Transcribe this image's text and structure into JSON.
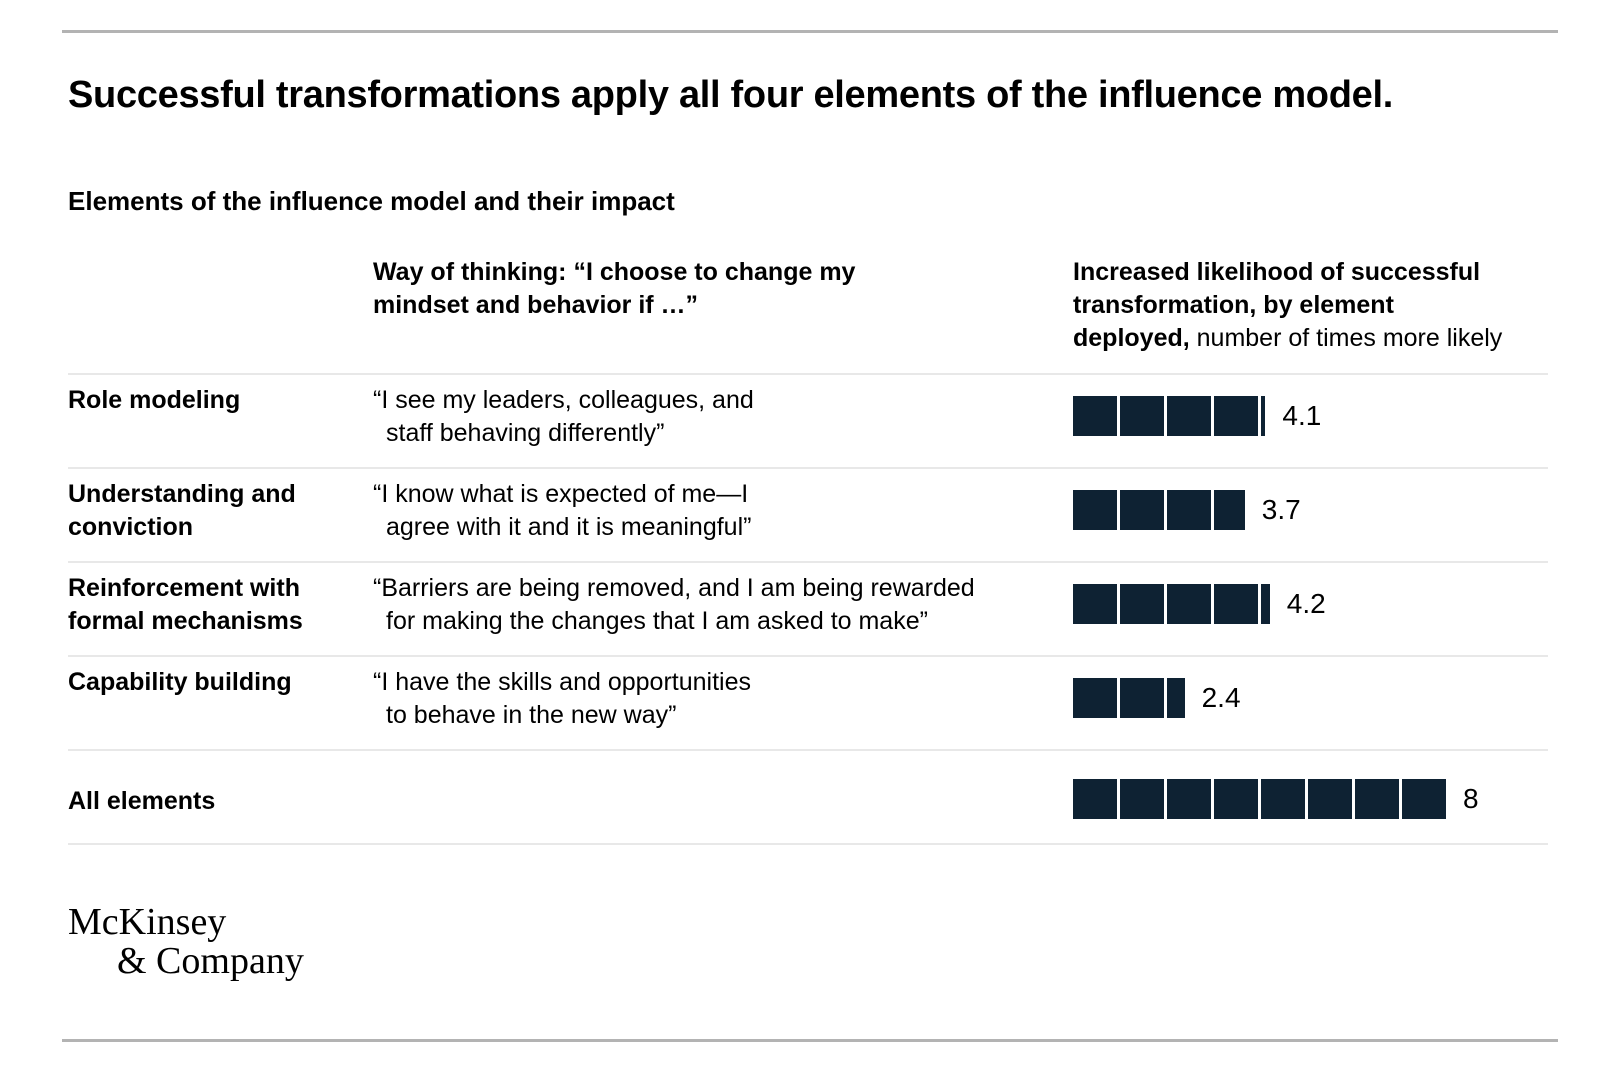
{
  "header": {
    "title": "Successful transformations apply all four elements of the influence model.",
    "subtitle": "Elements of the influence model and their impact"
  },
  "columns": {
    "way_of_thinking": {
      "line1": "Way of thinking: “I choose to change my",
      "line2": "mindset and behavior if …”"
    },
    "impact": {
      "line1": "Increased likelihood of successful",
      "line2": "transformation, by element",
      "line3_bold": "deployed,",
      "line3_regular": " number of times more likely"
    }
  },
  "table": {
    "rows": [
      {
        "label_lines": [
          "Role modeling"
        ],
        "quote_lines": [
          "“I see my leaders, colleagues, and",
          "staff behaving differently”"
        ],
        "value": 4.1,
        "value_label": "4.1",
        "emphasis": false
      },
      {
        "label_lines": [
          "Understanding and",
          "conviction"
        ],
        "quote_lines": [
          "“I know what is expected of me—I",
          "agree with it and it is meaningful”"
        ],
        "value": 3.7,
        "value_label": "3.7",
        "emphasis": false
      },
      {
        "label_lines": [
          "Reinforcement with",
          "formal mechanisms"
        ],
        "quote_lines": [
          "“Barriers are being removed, and I am being rewarded",
          "for making the changes that I am asked to make”"
        ],
        "value": 4.2,
        "value_label": "4.2",
        "emphasis": false
      },
      {
        "label_lines": [
          "Capability building"
        ],
        "quote_lines": [
          "“I have the skills and opportunities",
          "to behave in the new way”"
        ],
        "value": 2.4,
        "value_label": "2.4",
        "emphasis": false
      },
      {
        "label_lines": [
          "All elements"
        ],
        "quote_lines": [],
        "value": 8,
        "value_label": "8",
        "emphasis": true
      }
    ]
  },
  "logo": {
    "line1": "McKinsey",
    "line2": "& Company"
  },
  "colors": {
    "bar": "#0e2233",
    "row_divider": "#e8e8e8",
    "page_rule": "#b3b3b3",
    "text": "#000000",
    "background": "#ffffff"
  },
  "chart_data": {
    "type": "bar",
    "orientation": "horizontal",
    "title": "Successful transformations apply all four elements of the influence model.",
    "subtitle": "Elements of the influence model and their impact",
    "categories": [
      "Role modeling",
      "Understanding and conviction",
      "Reinforcement with formal mechanisms",
      "Capability building",
      "All elements"
    ],
    "values": [
      4.1,
      3.7,
      4.2,
      2.4,
      8
    ],
    "value_labels": [
      "4.1",
      "3.7",
      "4.2",
      "2.4",
      "8"
    ],
    "series_name": "Increased likelihood of successful transformation, by element deployed",
    "value_unit": "number of times more likely",
    "annotations": [
      "“I see my leaders, colleagues, and staff behaving differently”",
      "“I know what is expected of me—I agree with it and it is meaningful”",
      "“Barriers are being removed, and I am being rewarded for making the changes that I am asked to make”",
      "“I have the skills and opportunities to behave in the new way”",
      ""
    ],
    "xlim": [
      0,
      8
    ],
    "grid": false,
    "legend_position": "none",
    "bar_style": "segmented-unit-squares",
    "bar_color": "#0e2233",
    "source": "McKinsey & Company"
  }
}
